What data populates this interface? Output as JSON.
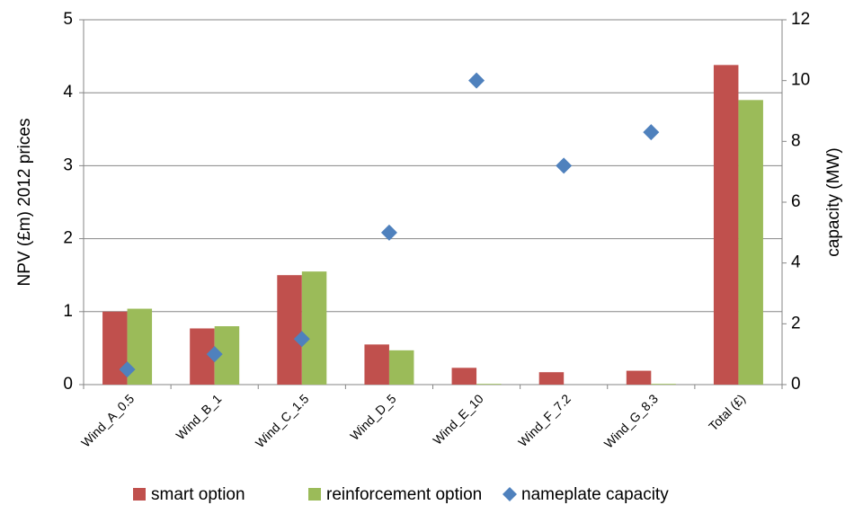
{
  "chart_data": {
    "type": "bar",
    "categories": [
      "Wind_A_0.5",
      "Wind_B_1",
      "Wind_C_1.5",
      "Wind_D_5",
      "Wind_E_10",
      "Wind_F_7.2",
      "Wind_G_8.3",
      "Total (£)"
    ],
    "series": [
      {
        "name": "smart option",
        "color": "#c0504d",
        "values": [
          1.0,
          0.77,
          1.5,
          0.55,
          0.23,
          0.17,
          0.19,
          4.38
        ]
      },
      {
        "name": "reinforcement option",
        "color": "#9bbb59",
        "values": [
          1.04,
          0.8,
          1.55,
          0.47,
          0.01,
          0,
          0.01,
          3.9
        ]
      },
      {
        "name": "nameplate capacity",
        "color": "#4f81bd",
        "type": "scatter",
        "axis": "y2",
        "values": [
          0.5,
          1,
          1.5,
          5,
          10,
          7.2,
          8.3,
          null
        ]
      }
    ],
    "ylabel": "NPV (£m) 2012 prices",
    "y2label": "capacity (MW)",
    "ylim": [
      0,
      5
    ],
    "yticks": [
      0,
      1,
      2,
      3,
      4,
      5
    ],
    "y2lim": [
      0,
      12
    ],
    "y2ticks": [
      0,
      2,
      4,
      6,
      8,
      10,
      12
    ],
    "grid": true,
    "legend": "bottom"
  }
}
